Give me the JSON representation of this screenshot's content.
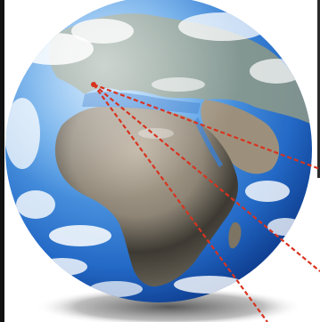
{
  "image": {
    "subject": "",
    "colors": {
      "ocean_light": "#6fb3ee",
      "ocean_mid": "#2f7fd6",
      "ocean_dark": "#0b3f99",
      "land_desert": "#a59a88",
      "land_dark": "#35322c",
      "cloud": "#ffffff",
      "ray": "#d8331f",
      "shadow": "#4a4a4a"
    }
  }
}
